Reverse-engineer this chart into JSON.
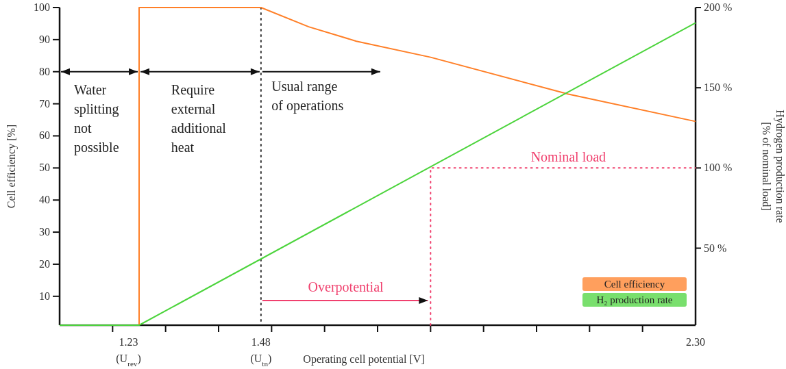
{
  "chart_data": {
    "type": "line",
    "xlabel": "Operating cell potential [V]",
    "ylabel": "Cell efficiency [%]",
    "y2label": "Hydrogen production rate\n[% of nominal load]",
    "xlim": [
      1.1,
      2.3
    ],
    "xticks": [
      {
        "value": 1.2,
        "label": null
      },
      {
        "value": 1.23,
        "label": "1.23\n(U$_{rev}$)"
      },
      {
        "value": 1.3,
        "label": null
      },
      {
        "value": 1.4,
        "label": null
      },
      {
        "value": 1.48,
        "label": "1.48\n(U$_{tn}$)"
      },
      {
        "value": 1.5,
        "label": null
      },
      {
        "value": 1.6,
        "label": null
      },
      {
        "value": 1.7,
        "label": null
      },
      {
        "value": 1.8,
        "label": null
      },
      {
        "value": 1.9,
        "label": null
      },
      {
        "value": 2.0,
        "label": null
      },
      {
        "value": 2.1,
        "label": null
      },
      {
        "value": 2.2,
        "label": null
      },
      {
        "value": 2.3,
        "label": "2.30"
      }
    ],
    "ylim": [
      1,
      100
    ],
    "yticks": [
      10,
      20,
      30,
      40,
      50,
      60,
      70,
      80,
      90,
      100
    ],
    "y2lim": [
      2,
      200
    ],
    "y2ticks": [
      {
        "value": 50,
        "label": "50 %"
      },
      {
        "value": 100,
        "label": "100 %"
      },
      {
        "value": 150,
        "label": "150 %"
      },
      {
        "value": 200,
        "label": "200 %"
      }
    ],
    "series": [
      {
        "name": "Cell efficiency",
        "color": "#ff7f27",
        "x": [
          1.25,
          1.25,
          1.48,
          1.57,
          1.66,
          1.8,
          2.06,
          2.3
        ],
        "values": [
          1,
          100,
          100,
          94,
          89.5,
          84.5,
          73,
          64.5
        ]
      },
      {
        "name": "H₂ production rate",
        "color": "#4cd43c",
        "axis": "y2",
        "x": [
          1.1,
          1.25,
          2.3
        ],
        "values": [
          2,
          2,
          190.5
        ]
      },
      {
        "color": "#f0406e",
        "axis": "y2",
        "line_style": "dotted",
        "x": [
          1.8,
          1.8,
          2.3
        ],
        "values": [
          2,
          100,
          100
        ]
      }
    ],
    "ref_lines": [
      {
        "axis": "x",
        "value": 1.48,
        "color": "#333333",
        "line_style": "dotted"
      }
    ],
    "annotations": [
      {
        "text": "Water\nsplitting\nnot\npossible",
        "x": 1.25,
        "y": 80
      },
      {
        "text": "Require\nexternal\nadditional\nheat",
        "x": 1.48,
        "y": 80
      },
      "Usual range\nof operations",
      "Overpotential",
      "Nominal load"
    ],
    "legend": "bottom right"
  }
}
